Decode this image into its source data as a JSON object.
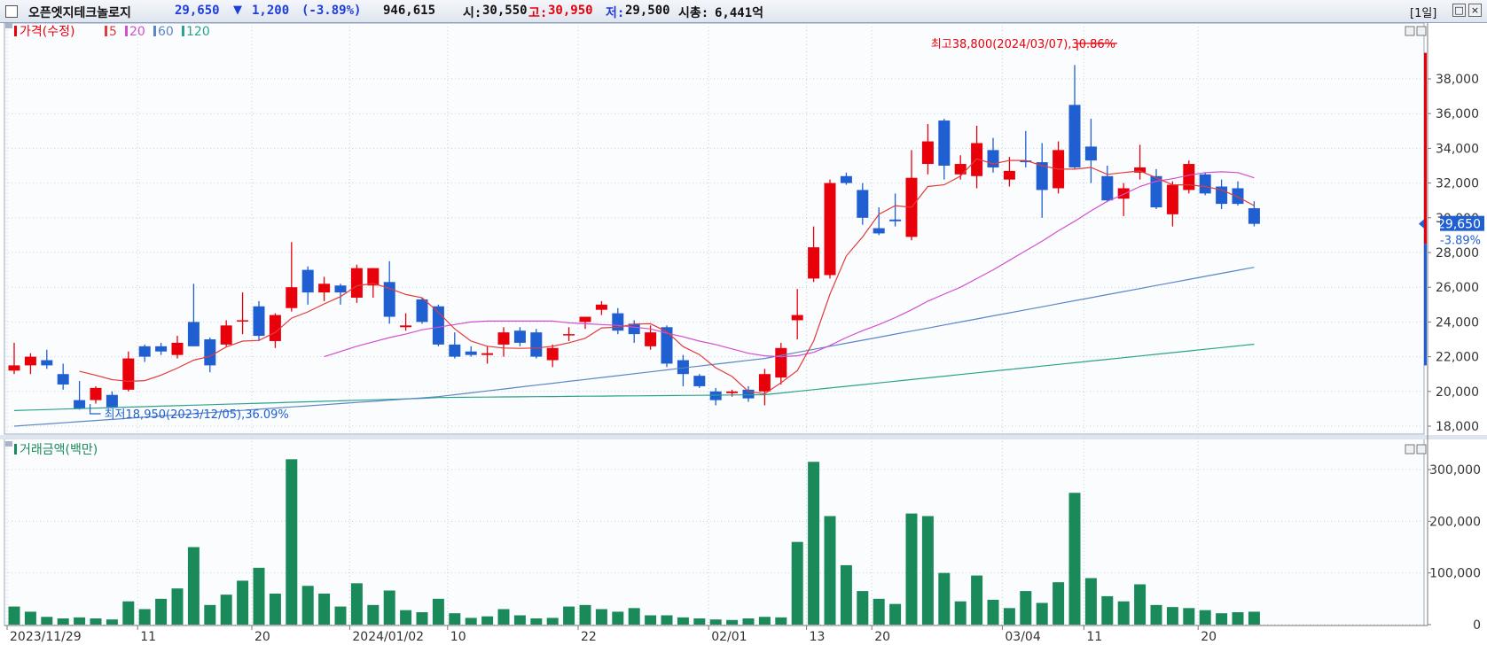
{
  "header": {
    "stock_name": "오픈엣지테크놀로지",
    "price": "29,650",
    "change_arrow": "▼",
    "change": "1,200",
    "change_pct": "(-3.89%)",
    "volume": "946,615",
    "open_label": "시:",
    "open": "30,550",
    "high_label": "고:",
    "high": "30,950",
    "low_label": "저:",
    "low": "29,500",
    "mktcap_label": "시총:",
    "mktcap": "6,441억",
    "period": "[1일]"
  },
  "colors": {
    "up": "#e8000b",
    "down": "#1f5fd1",
    "ma5": "#e33a3a",
    "ma20": "#d24fcf",
    "ma60": "#5b86c6",
    "ma120": "#2aa38a",
    "volume": "#1b8a5a"
  },
  "chart_data": [
    {
      "type": "candlestick",
      "legend": {
        "price": "가격(수정)",
        "ma": [
          "5",
          "20",
          "60",
          "120"
        ]
      },
      "x_labels": [
        {
          "i": 0,
          "label": "2023/11/29"
        },
        {
          "i": 8,
          "label": "11"
        },
        {
          "i": 15,
          "label": "20"
        },
        {
          "i": 21,
          "label": "2024/01/02"
        },
        {
          "i": 27,
          "label": "10"
        },
        {
          "i": 35,
          "label": "22"
        },
        {
          "i": 43,
          "label": "02/01"
        },
        {
          "i": 49,
          "label": "13"
        },
        {
          "i": 53,
          "label": "20"
        },
        {
          "i": 61,
          "label": "03/04"
        },
        {
          "i": 66,
          "label": "11"
        },
        {
          "i": 73,
          "label": "20"
        }
      ],
      "y_ticks": [
        "18,000",
        "20,000",
        "22,000",
        "24,000",
        "26,000",
        "28,000",
        "30,000",
        "32,000",
        "34,000",
        "36,000",
        "38,000"
      ],
      "ylim": [
        17000,
        40500
      ],
      "current_price": "29,650",
      "current_change": "-3.89%",
      "annotation_high": "최고38,800(2024/03/07),30.86%",
      "annotation_low": "최저18,950(2023/12/05),36.09%",
      "ohlc": [
        [
          21200,
          22800,
          21000,
          21500
        ],
        [
          21500,
          22200,
          21000,
          22000
        ],
        [
          21800,
          22400,
          21300,
          21500
        ],
        [
          21000,
          21600,
          20100,
          20400
        ],
        [
          19500,
          20600,
          18950,
          19000
        ],
        [
          19500,
          20300,
          19300,
          20200
        ],
        [
          19800,
          20000,
          19200,
          19100
        ],
        [
          20100,
          22300,
          20000,
          21900
        ],
        [
          22600,
          22700,
          21700,
          22000
        ],
        [
          22600,
          22800,
          22100,
          22300
        ],
        [
          22100,
          23200,
          21900,
          22800
        ],
        [
          24000,
          26200,
          22600,
          22600
        ],
        [
          23000,
          23100,
          21100,
          21500
        ],
        [
          22700,
          24100,
          22600,
          23800
        ],
        [
          24100,
          25700,
          23300,
          24100
        ],
        [
          24900,
          25200,
          22900,
          23200
        ],
        [
          22900,
          24500,
          22500,
          24400
        ],
        [
          24800,
          28600,
          24600,
          26000
        ],
        [
          27000,
          27200,
          25000,
          25700
        ],
        [
          25700,
          26600,
          25200,
          26200
        ],
        [
          26100,
          26200,
          25000,
          25700
        ],
        [
          25400,
          27300,
          25100,
          27100
        ],
        [
          26100,
          27100,
          25400,
          27100
        ],
        [
          26300,
          27500,
          23900,
          24300
        ],
        [
          23700,
          24500,
          23500,
          23800
        ],
        [
          25300,
          25400,
          23900,
          24000
        ],
        [
          24900,
          25000,
          22600,
          22700
        ],
        [
          22700,
          23400,
          21900,
          22000
        ],
        [
          22300,
          22600,
          22000,
          22100
        ],
        [
          22100,
          22600,
          21600,
          22200
        ],
        [
          22700,
          23700,
          22000,
          23400
        ],
        [
          23500,
          23700,
          22600,
          22800
        ],
        [
          23400,
          23600,
          21900,
          22000
        ],
        [
          21800,
          22700,
          21400,
          22500
        ],
        [
          23300,
          23700,
          22900,
          23300
        ],
        [
          24000,
          24200,
          23600,
          24300
        ],
        [
          24700,
          25200,
          24400,
          25000
        ],
        [
          24500,
          24800,
          23300,
          23500
        ],
        [
          23900,
          24100,
          22800,
          23300
        ],
        [
          22600,
          23800,
          22400,
          23400
        ],
        [
          23700,
          23800,
          21400,
          21600
        ],
        [
          21800,
          22100,
          20300,
          21000
        ],
        [
          20900,
          21000,
          20200,
          20300
        ],
        [
          20000,
          20200,
          19200,
          19500
        ],
        [
          19900,
          20100,
          19700,
          20000
        ],
        [
          20100,
          20300,
          19400,
          19600
        ],
        [
          20000,
          21300,
          19200,
          21000
        ],
        [
          20800,
          22800,
          20400,
          22500
        ],
        [
          24100,
          25900,
          23000,
          24400
        ],
        [
          26500,
          29500,
          26300,
          28300
        ],
        [
          26700,
          32200,
          26500,
          32000
        ],
        [
          32400,
          32600,
          31900,
          32000
        ],
        [
          31600,
          32000,
          29600,
          30000
        ],
        [
          29400,
          30600,
          29000,
          29100
        ],
        [
          29900,
          31400,
          29500,
          29800
        ],
        [
          28900,
          33900,
          28700,
          32300
        ],
        [
          33100,
          35400,
          32500,
          34400
        ],
        [
          35600,
          35700,
          32200,
          33000
        ],
        [
          32500,
          33600,
          32200,
          33100
        ],
        [
          32400,
          35300,
          31700,
          34300
        ],
        [
          33900,
          34600,
          32600,
          32900
        ],
        [
          32200,
          33500,
          31800,
          32700
        ],
        [
          33300,
          35000,
          32900,
          33200
        ],
        [
          33200,
          34300,
          30000,
          31600
        ],
        [
          31700,
          34400,
          31400,
          33900
        ],
        [
          36500,
          38800,
          32800,
          32900
        ],
        [
          34100,
          35700,
          32000,
          33300
        ],
        [
          32400,
          33000,
          30900,
          31000
        ],
        [
          31100,
          32000,
          30100,
          31700
        ],
        [
          32600,
          34200,
          32200,
          32900
        ],
        [
          32400,
          32800,
          30500,
          30600
        ],
        [
          30200,
          32100,
          29500,
          31900
        ],
        [
          31600,
          33300,
          31400,
          33100
        ],
        [
          32500,
          32600,
          31300,
          31400
        ],
        [
          31800,
          32200,
          30500,
          30800
        ],
        [
          31700,
          32100,
          30700,
          30800
        ],
        [
          30550,
          30950,
          29500,
          29650
        ]
      ],
      "ma5": [
        null,
        null,
        null,
        null,
        21160,
        20930,
        20680,
        20580,
        20620,
        20940,
        21340,
        21800,
        22020,
        22560,
        22900,
        22940,
        23400,
        24220,
        24580,
        25040,
        25460,
        26080,
        26220,
        25940,
        25580,
        25400,
        24560,
        23600,
        22900,
        22600,
        22500,
        22480,
        22500,
        22600,
        22800,
        23060,
        23660,
        23700,
        23880,
        23900,
        23440,
        22580,
        22120,
        21360,
        20860,
        20000,
        19860,
        20500,
        21200,
        22900,
        25600,
        27800,
        28900,
        30200,
        30700,
        30600,
        31800,
        31900,
        32400,
        33400,
        33100,
        33300,
        33300,
        33000,
        32800,
        32800,
        32900,
        32500,
        32600,
        32700,
        32300,
        31900,
        31900,
        31800,
        31600,
        31200,
        30700
      ],
      "ma20": [
        null,
        null,
        null,
        null,
        null,
        null,
        null,
        null,
        null,
        null,
        null,
        null,
        null,
        null,
        null,
        null,
        null,
        null,
        null,
        22000,
        22300,
        22600,
        22850,
        23100,
        23300,
        23550,
        23700,
        23850,
        24000,
        24050,
        24050,
        24050,
        24050,
        24050,
        23950,
        23900,
        23850,
        23800,
        23700,
        23600,
        23350,
        23150,
        22900,
        22700,
        22450,
        22200,
        22050,
        22000,
        22050,
        22250,
        22650,
        23100,
        23500,
        23850,
        24250,
        24700,
        25200,
        25600,
        26000,
        26500,
        27000,
        27550,
        28100,
        28650,
        29250,
        29800,
        30400,
        30950,
        31350,
        31800,
        32100,
        32250,
        32450,
        32600,
        32650,
        32600,
        32300
      ],
      "ma60": [
        null,
        null,
        null,
        null,
        null,
        null,
        null,
        null,
        null,
        null,
        null,
        null,
        null,
        null,
        null,
        null,
        null,
        null,
        null,
        null,
        null,
        null,
        null,
        null,
        null,
        null,
        null,
        null,
        null,
        null,
        null,
        null,
        null,
        null,
        null,
        null,
        null,
        null,
        null,
        null,
        null,
        null,
        null,
        null,
        null,
        null,
        null,
        null,
        null,
        null,
        null,
        null,
        null,
        null,
        null,
        null,
        null,
        null,
        null,
        null,
        null,
        null,
        null,
        null,
        null,
        null,
        null,
        null,
        null,
        null,
        null,
        null,
        null,
        null,
        null,
        null,
        null
      ]
    },
    {
      "type": "bar",
      "title": "거래금액(백만)",
      "y_ticks": [
        "0",
        "100,000",
        "200,000",
        "300,000"
      ],
      "ylim": [
        0,
        360000
      ],
      "values": [
        35000,
        25000,
        15000,
        12000,
        14000,
        12000,
        10000,
        45000,
        30000,
        50000,
        70000,
        150000,
        38000,
        58000,
        85000,
        110000,
        60000,
        320000,
        75000,
        60000,
        35000,
        80000,
        38000,
        66000,
        28000,
        24000,
        50000,
        22000,
        13000,
        16000,
        30000,
        18000,
        12000,
        13000,
        35000,
        38000,
        30000,
        25000,
        32000,
        18000,
        18000,
        14000,
        12000,
        10000,
        9000,
        12000,
        15000,
        14000,
        160000,
        315000,
        210000,
        115000,
        65000,
        50000,
        40000,
        215000,
        210000,
        100000,
        45000,
        95000,
        48000,
        32000,
        65000,
        42000,
        82000,
        255000,
        90000,
        55000,
        45000,
        78000,
        38000,
        34000,
        32000,
        28000,
        22000,
        24000,
        25000
      ]
    }
  ]
}
